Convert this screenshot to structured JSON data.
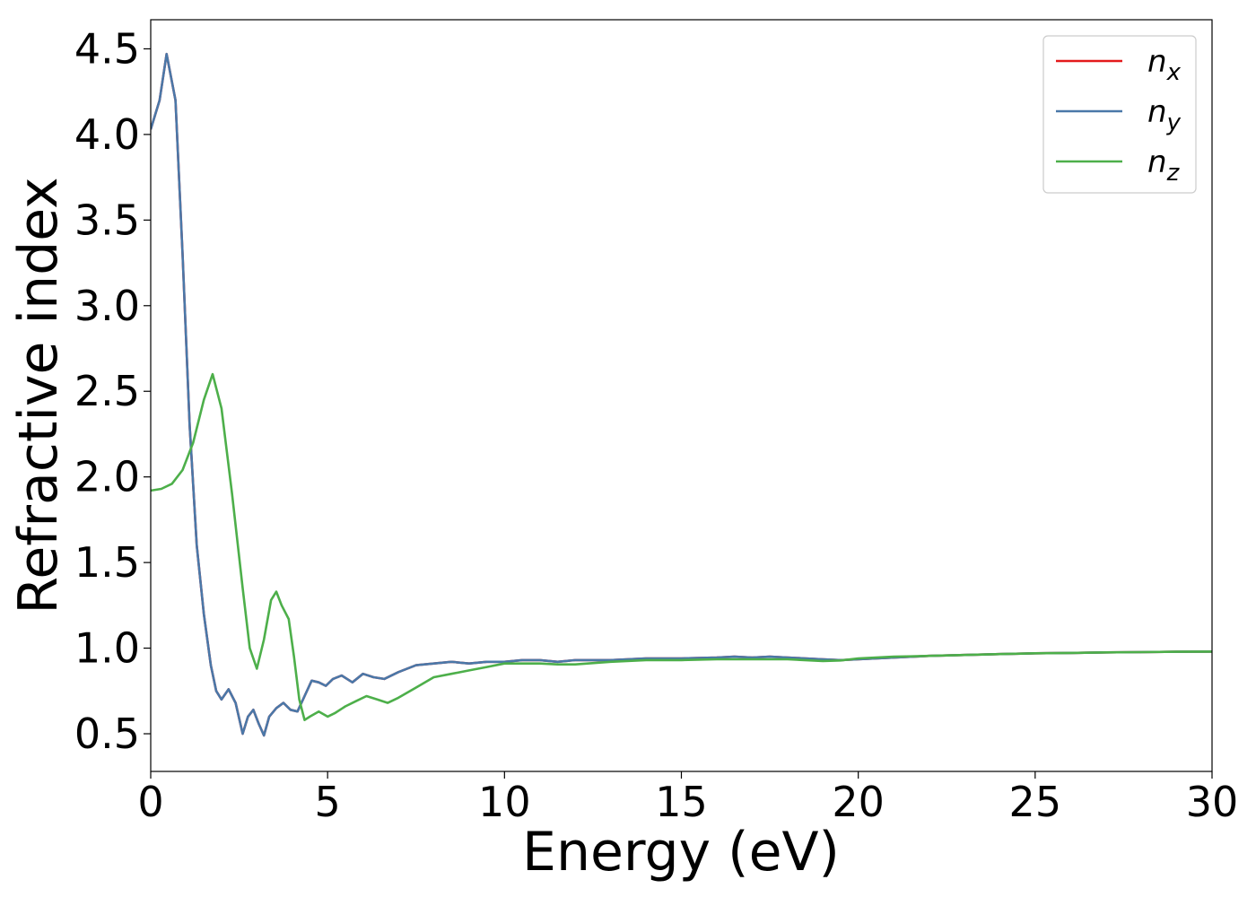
{
  "chart_data": {
    "type": "line",
    "title": "",
    "xlabel": "Energy (eV)",
    "ylabel": "Refractive index",
    "xlim": [
      0,
      30
    ],
    "ylim": [
      0.28,
      4.67
    ],
    "xticks": [
      0,
      5,
      10,
      15,
      20,
      25,
      30
    ],
    "yticks": [
      0.5,
      1.0,
      1.5,
      2.0,
      2.5,
      3.0,
      3.5,
      4.0,
      4.5
    ],
    "grid": false,
    "legend_position": "top-right",
    "series": [
      {
        "name": "n",
        "subscript": "x",
        "color": "#e41a1c",
        "x": [
          0,
          0.25,
          0.45,
          0.7,
          0.9,
          1.1,
          1.3,
          1.5,
          1.7,
          1.85,
          2.0,
          2.2,
          2.4,
          2.6,
          2.75,
          2.9,
          3.05,
          3.2,
          3.35,
          3.55,
          3.75,
          3.95,
          4.15,
          4.35,
          4.55,
          4.75,
          4.95,
          5.15,
          5.4,
          5.7,
          6.0,
          6.3,
          6.6,
          7.0,
          7.5,
          8.0,
          8.5,
          9.0,
          9.5,
          10.0,
          10.5,
          11.0,
          11.5,
          12.0,
          13.0,
          14.0,
          15.0,
          16.0,
          16.5,
          17.0,
          17.5,
          18.0,
          18.5,
          19.0,
          19.5,
          20.0,
          21.0,
          22.0,
          23.0,
          24.0,
          25.0,
          26.0,
          27.0,
          28.0,
          29.0,
          30.0
        ],
        "y": [
          4.03,
          4.2,
          4.47,
          4.2,
          3.3,
          2.3,
          1.6,
          1.2,
          0.9,
          0.75,
          0.7,
          0.76,
          0.68,
          0.5,
          0.6,
          0.64,
          0.56,
          0.49,
          0.6,
          0.65,
          0.68,
          0.64,
          0.63,
          0.72,
          0.81,
          0.8,
          0.78,
          0.82,
          0.84,
          0.8,
          0.85,
          0.83,
          0.82,
          0.86,
          0.9,
          0.91,
          0.92,
          0.91,
          0.92,
          0.92,
          0.93,
          0.93,
          0.92,
          0.93,
          0.93,
          0.94,
          0.94,
          0.945,
          0.95,
          0.945,
          0.95,
          0.945,
          0.94,
          0.935,
          0.93,
          0.935,
          0.945,
          0.955,
          0.96,
          0.965,
          0.97,
          0.972,
          0.975,
          0.977,
          0.979,
          0.98
        ]
      },
      {
        "name": "n",
        "subscript": "y",
        "color": "#4a78a8",
        "x": [
          0,
          0.25,
          0.45,
          0.7,
          0.9,
          1.1,
          1.3,
          1.5,
          1.7,
          1.85,
          2.0,
          2.2,
          2.4,
          2.6,
          2.75,
          2.9,
          3.05,
          3.2,
          3.35,
          3.55,
          3.75,
          3.95,
          4.15,
          4.35,
          4.55,
          4.75,
          4.95,
          5.15,
          5.4,
          5.7,
          6.0,
          6.3,
          6.6,
          7.0,
          7.5,
          8.0,
          8.5,
          9.0,
          9.5,
          10.0,
          10.5,
          11.0,
          11.5,
          12.0,
          13.0,
          14.0,
          15.0,
          16.0,
          16.5,
          17.0,
          17.5,
          18.0,
          18.5,
          19.0,
          19.5,
          20.0,
          21.0,
          22.0,
          23.0,
          24.0,
          25.0,
          26.0,
          27.0,
          28.0,
          29.0,
          30.0
        ],
        "y": [
          4.03,
          4.2,
          4.47,
          4.2,
          3.3,
          2.3,
          1.6,
          1.2,
          0.9,
          0.75,
          0.7,
          0.76,
          0.68,
          0.5,
          0.6,
          0.64,
          0.56,
          0.49,
          0.6,
          0.65,
          0.68,
          0.64,
          0.63,
          0.72,
          0.81,
          0.8,
          0.78,
          0.82,
          0.84,
          0.8,
          0.85,
          0.83,
          0.82,
          0.86,
          0.9,
          0.91,
          0.92,
          0.91,
          0.92,
          0.92,
          0.93,
          0.93,
          0.92,
          0.93,
          0.93,
          0.94,
          0.94,
          0.945,
          0.95,
          0.945,
          0.95,
          0.945,
          0.94,
          0.935,
          0.93,
          0.935,
          0.945,
          0.955,
          0.96,
          0.965,
          0.97,
          0.972,
          0.975,
          0.977,
          0.979,
          0.98
        ]
      },
      {
        "name": "n",
        "subscript": "z",
        "color": "#4daf4a",
        "x": [
          0,
          0.3,
          0.6,
          0.9,
          1.2,
          1.5,
          1.75,
          2.0,
          2.3,
          2.6,
          2.8,
          3.0,
          3.2,
          3.4,
          3.55,
          3.7,
          3.9,
          4.05,
          4.2,
          4.35,
          4.5,
          4.75,
          5.0,
          5.2,
          5.5,
          5.8,
          6.1,
          6.4,
          6.7,
          7.0,
          7.5,
          8.0,
          8.5,
          9.0,
          9.5,
          10.0,
          10.5,
          11.0,
          11.5,
          12.0,
          13.0,
          14.0,
          15.0,
          16.0,
          17.0,
          18.0,
          19.0,
          19.5,
          20.0,
          21.0,
          22.0,
          23.0,
          24.0,
          25.0,
          26.0,
          27.0,
          28.0,
          29.0,
          30.0
        ],
        "y": [
          1.92,
          1.93,
          1.96,
          2.04,
          2.2,
          2.45,
          2.6,
          2.4,
          1.9,
          1.35,
          1.0,
          0.88,
          1.05,
          1.28,
          1.33,
          1.25,
          1.17,
          0.95,
          0.7,
          0.58,
          0.6,
          0.63,
          0.6,
          0.62,
          0.66,
          0.69,
          0.72,
          0.7,
          0.68,
          0.71,
          0.77,
          0.83,
          0.85,
          0.87,
          0.89,
          0.91,
          0.91,
          0.91,
          0.905,
          0.905,
          0.92,
          0.93,
          0.93,
          0.935,
          0.935,
          0.935,
          0.925,
          0.928,
          0.94,
          0.95,
          0.955,
          0.96,
          0.965,
          0.97,
          0.972,
          0.975,
          0.977,
          0.979,
          0.98
        ]
      }
    ]
  }
}
